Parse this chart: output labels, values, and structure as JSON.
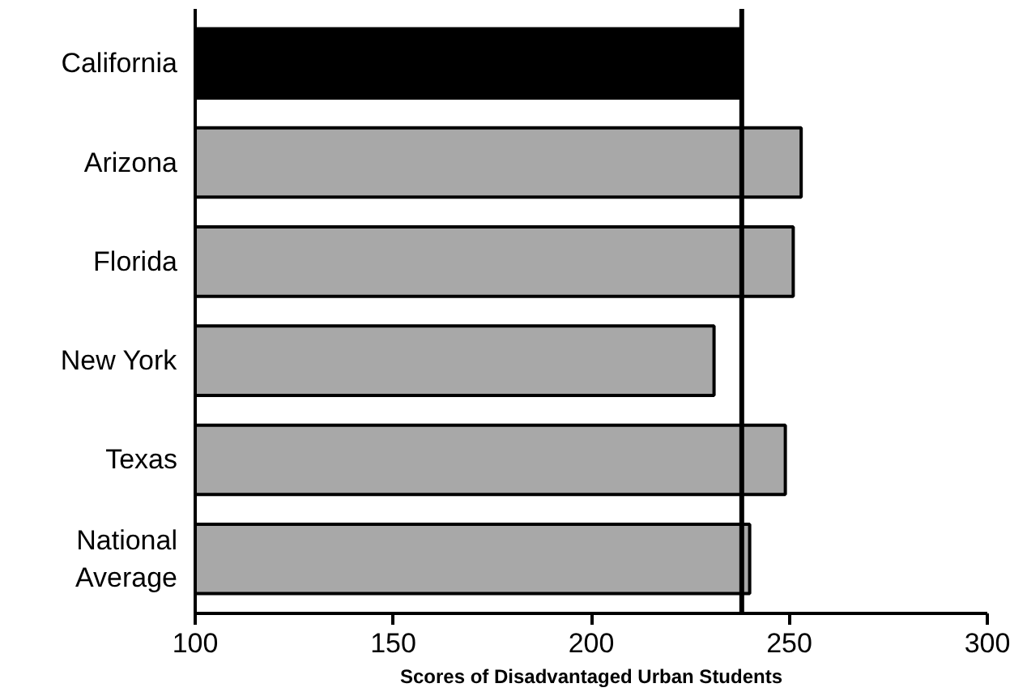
{
  "chart_data": {
    "type": "bar",
    "orientation": "horizontal",
    "xlabel": "Scores of Disadvantaged Urban Students",
    "categories": [
      "California",
      "Arizona",
      "Florida",
      "New York",
      "Texas",
      "National\nAverage"
    ],
    "values": [
      238,
      253,
      251,
      231,
      249,
      240
    ],
    "colors": [
      "#000000",
      "#a8a8a8",
      "#a8a8a8",
      "#a8a8a8",
      "#a8a8a8",
      "#a8a8a8"
    ],
    "xlim": [
      100,
      300
    ],
    "xticks": [
      100,
      150,
      200,
      250,
      300
    ],
    "grid": false,
    "ref_lines": [
      {
        "axis": "x",
        "value": 238,
        "color": "#000000"
      }
    ]
  }
}
